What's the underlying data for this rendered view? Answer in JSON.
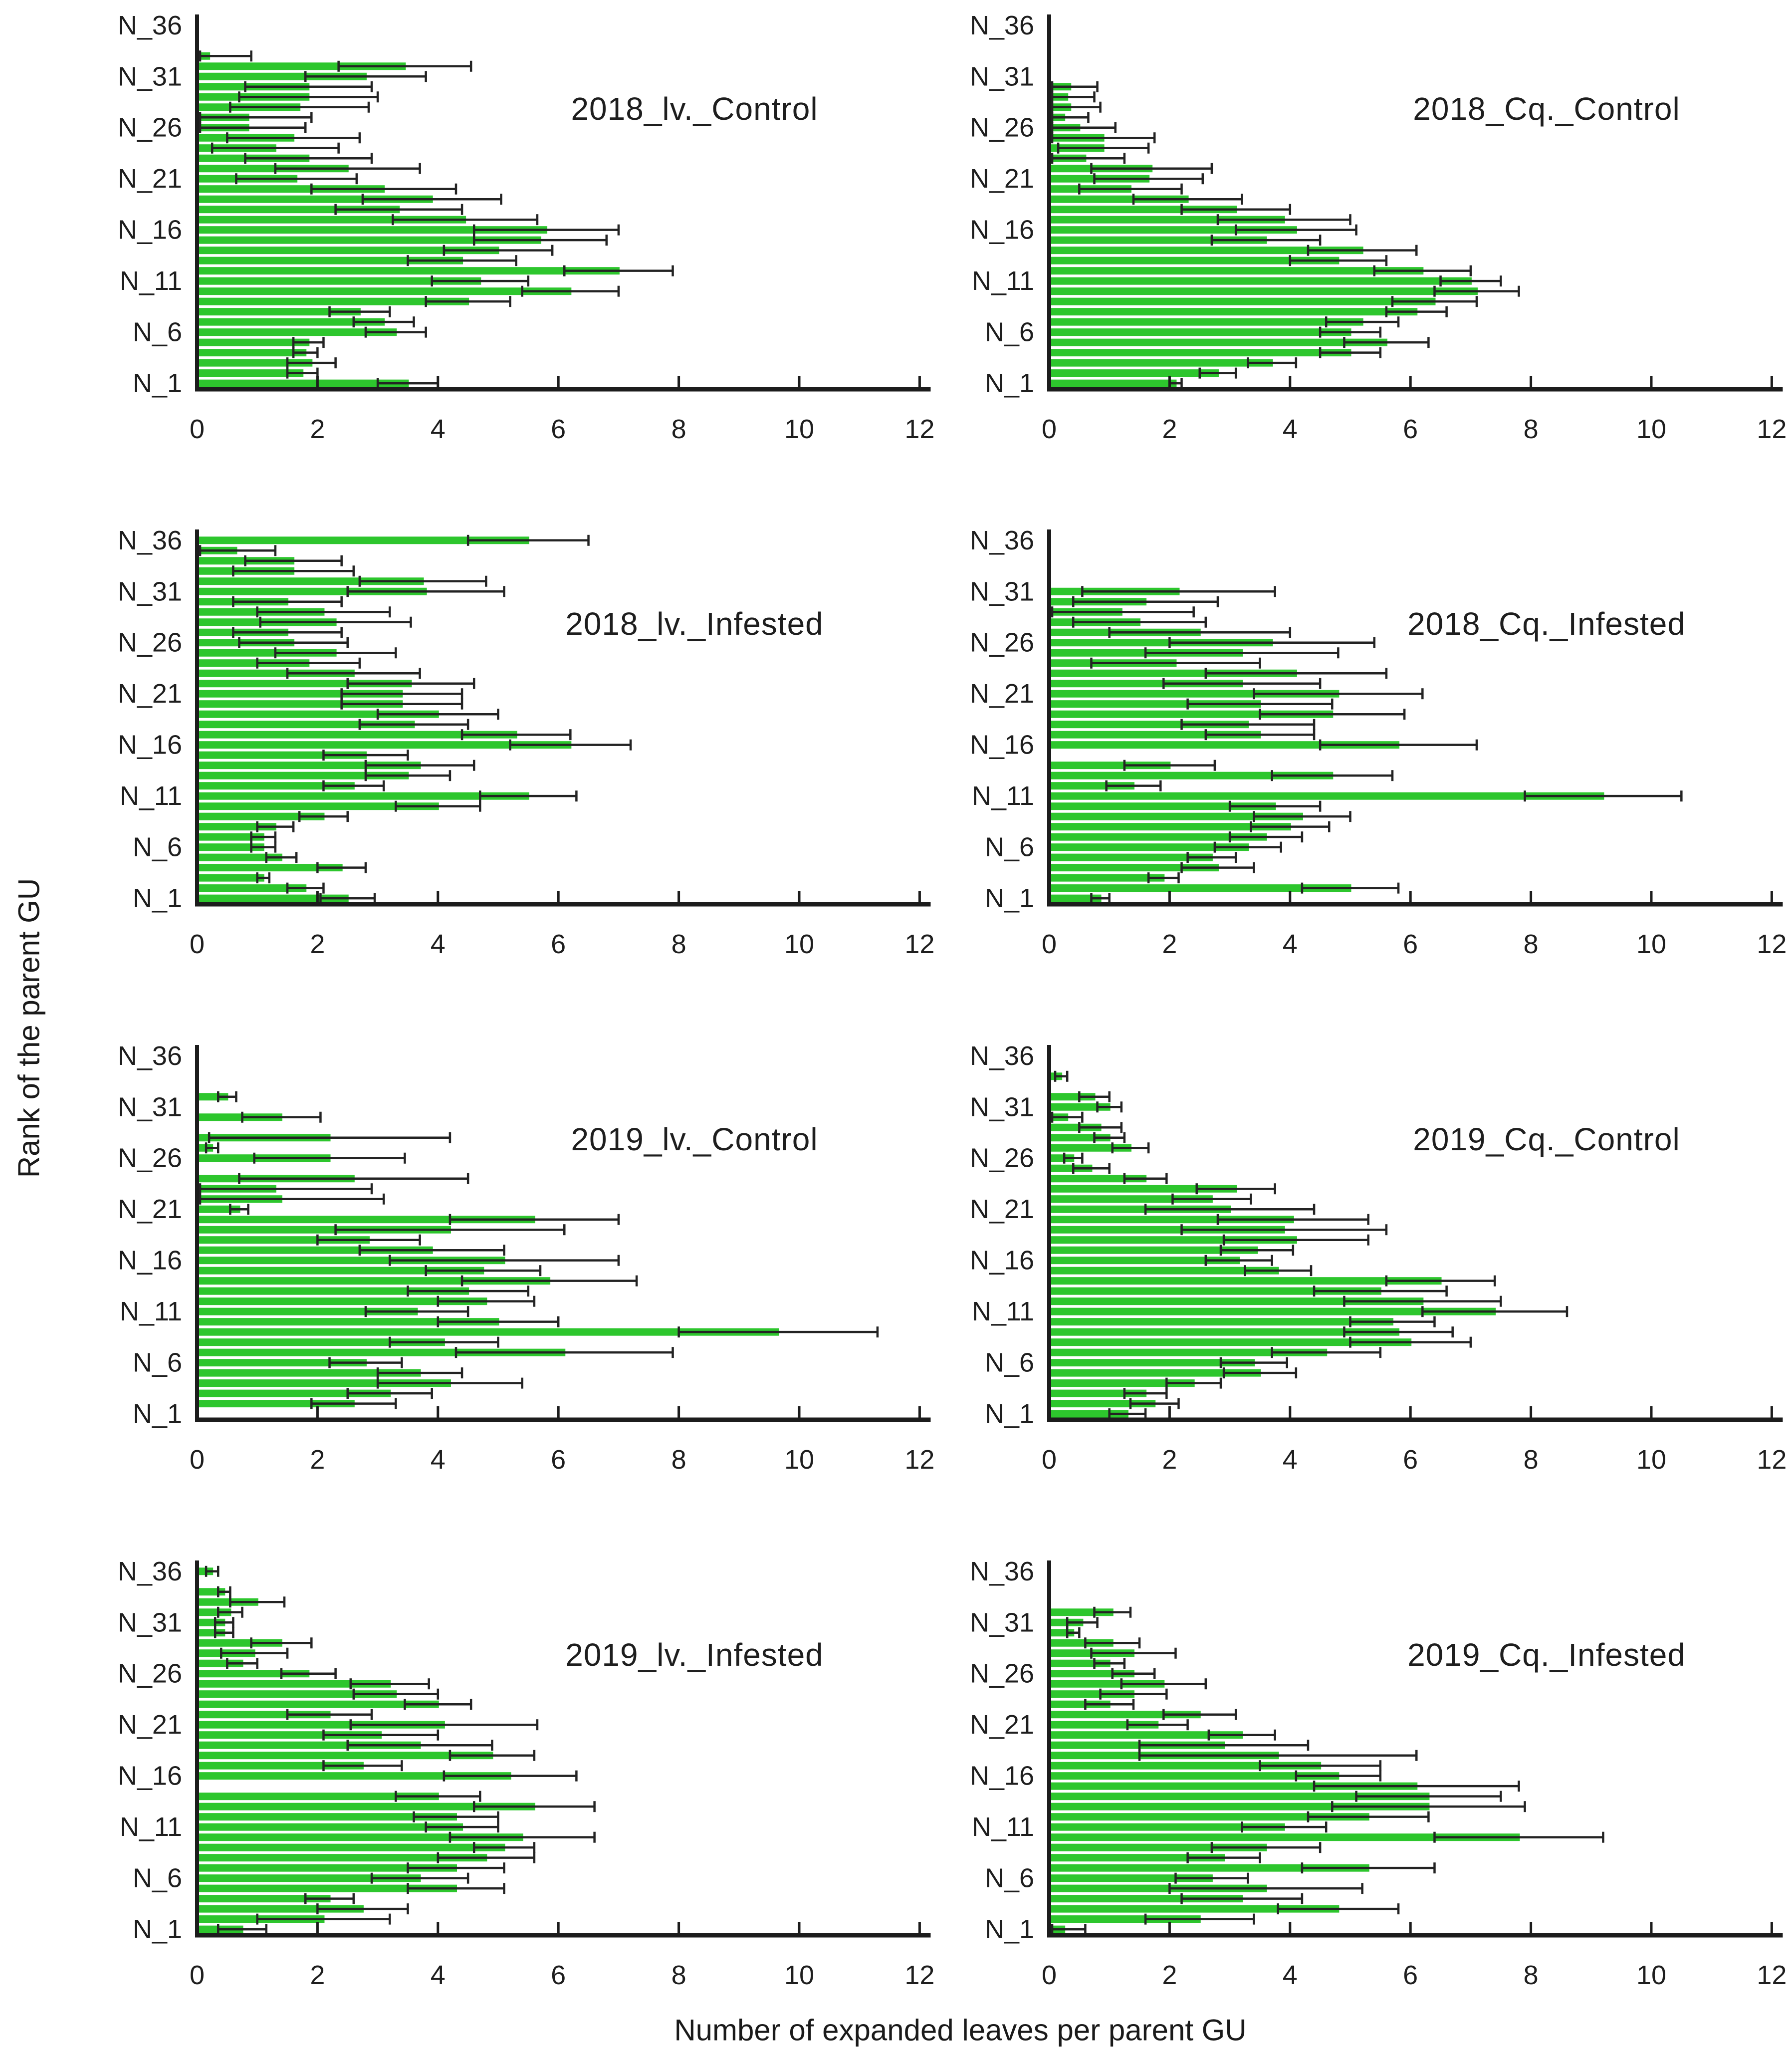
{
  "figure": {
    "x_axis_label": "Number of expanded leaves per parent GU",
    "y_axis_label": "Rank of the parent GU",
    "x_ticks": [
      0,
      2,
      4,
      6,
      8,
      10,
      12
    ],
    "x_max": 12,
    "y_tick_ranks": [
      1,
      6,
      11,
      16,
      21,
      26,
      31,
      36
    ],
    "y_tick_labels": [
      "N_1",
      "N_6",
      "N_11",
      "N_16",
      "N_21",
      "N_26",
      "N_31",
      "N_36"
    ],
    "rank_prefix": "N_",
    "bar_color": "#2dc62d",
    "error_color": "#232323",
    "axis_color": "#1c1c1c"
  },
  "chart_data": [
    {
      "type": "bar",
      "orientation": "horizontal",
      "title": "2018_lv._Control",
      "xlabel": "Number of expanded leaves per parent GU",
      "ylabel": "Rank of the parent GU",
      "xlim": [
        0,
        12
      ],
      "top_rank": 33,
      "values_from_top_rank_down_to_N1": [
        0.2,
        3.45,
        2.8,
        1.85,
        1.85,
        1.7,
        0.85,
        0.85,
        1.6,
        1.3,
        1.85,
        2.5,
        1.65,
        3.1,
        3.9,
        3.35,
        4.45,
        5.8,
        5.7,
        5.0,
        4.4,
        7.0,
        4.7,
        6.2,
        4.5,
        2.7,
        3.1,
        3.3,
        1.85,
        1.8,
        1.9,
        1.75,
        3.5
      ],
      "errors_half_width": [
        0.7,
        1.1,
        1.0,
        1.05,
        1.15,
        1.15,
        1.05,
        0.95,
        1.1,
        1.05,
        1.05,
        1.2,
        1.0,
        1.2,
        1.15,
        1.05,
        1.2,
        1.2,
        1.1,
        0.9,
        0.9,
        0.9,
        0.8,
        0.8,
        0.7,
        0.5,
        0.5,
        0.5,
        0.25,
        0.2,
        0.4,
        0.25,
        0.5
      ]
    },
    {
      "type": "bar",
      "orientation": "horizontal",
      "title": "2018_Cq._Control",
      "xlabel": "Number of expanded leaves per parent GU",
      "ylabel": "Rank of the parent GU",
      "xlim": [
        0,
        12
      ],
      "top_rank": 30,
      "values_from_top_rank_down_to_N1": [
        0.35,
        0.3,
        0.35,
        0.25,
        0.5,
        0.9,
        0.9,
        0.6,
        1.7,
        1.65,
        1.35,
        2.3,
        3.1,
        3.9,
        4.1,
        3.6,
        5.2,
        4.8,
        6.2,
        7.0,
        7.1,
        6.4,
        6.1,
        5.2,
        5.0,
        5.6,
        5.0,
        3.7,
        2.8,
        2.1
      ],
      "errors_half_width": [
        0.45,
        0.45,
        0.5,
        0.4,
        0.6,
        0.85,
        0.75,
        0.65,
        1.0,
        0.9,
        0.85,
        0.9,
        0.9,
        1.1,
        1.0,
        0.9,
        0.9,
        0.8,
        0.8,
        0.5,
        0.7,
        0.7,
        0.5,
        0.6,
        0.5,
        0.7,
        0.5,
        0.4,
        0.3,
        0.1
      ]
    },
    {
      "type": "bar",
      "orientation": "horizontal",
      "title": "2018_lv._Infested",
      "xlabel": "Number of expanded leaves per parent GU",
      "ylabel": "Rank of the parent GU",
      "xlim": [
        0,
        12
      ],
      "top_rank": 36,
      "values_from_top_rank_down_to_N1": [
        5.5,
        0.65,
        1.6,
        1.6,
        3.75,
        3.8,
        1.5,
        2.1,
        2.3,
        1.5,
        1.6,
        2.3,
        1.85,
        2.6,
        3.55,
        3.4,
        3.4,
        4.0,
        3.6,
        5.3,
        6.2,
        2.8,
        3.7,
        3.5,
        2.6,
        5.5,
        4.0,
        2.1,
        1.3,
        1.1,
        1.1,
        1.4,
        2.4,
        1.1,
        1.8,
        2.5
      ],
      "errors_half_width": [
        1.0,
        0.65,
        0.8,
        1.0,
        1.05,
        1.3,
        0.9,
        1.1,
        1.25,
        0.9,
        0.9,
        1.0,
        0.85,
        1.1,
        1.05,
        1.0,
        1.0,
        1.0,
        0.9,
        0.9,
        1.0,
        0.7,
        0.9,
        0.7,
        0.5,
        0.8,
        0.7,
        0.4,
        0.3,
        0.2,
        0.2,
        0.25,
        0.4,
        0.1,
        0.3,
        0.45
      ]
    },
    {
      "type": "bar",
      "orientation": "horizontal",
      "title": "2018_Cq._Infested",
      "xlabel": "Number of expanded leaves per parent GU",
      "ylabel": "Rank of the parent GU",
      "xlim": [
        0,
        12
      ],
      "top_rank": 31,
      "values_from_top_rank_down_to_N1": [
        2.15,
        1.6,
        1.2,
        1.5,
        2.5,
        3.7,
        3.2,
        2.1,
        4.1,
        3.2,
        4.8,
        3.5,
        4.7,
        3.3,
        3.5,
        5.8,
        0,
        2.0,
        4.7,
        1.4,
        9.2,
        3.75,
        4.2,
        4.0,
        3.6,
        3.3,
        2.7,
        2.8,
        1.9,
        5.0,
        0.85
      ],
      "errors_half_width": [
        1.6,
        1.2,
        1.2,
        1.1,
        1.5,
        1.7,
        1.6,
        1.4,
        1.5,
        1.3,
        1.4,
        1.2,
        1.2,
        1.1,
        0.9,
        1.3,
        0,
        0.75,
        1.0,
        0.45,
        1.3,
        0.75,
        0.8,
        0.65,
        0.6,
        0.55,
        0.4,
        0.6,
        0.25,
        0.8,
        0.15
      ]
    },
    {
      "type": "bar",
      "orientation": "horizontal",
      "title": "2019_lv._Control",
      "xlabel": "Number of expanded leaves per parent GU",
      "ylabel": "Rank of the parent GU",
      "xlim": [
        0,
        12
      ],
      "top_rank": 32,
      "values_from_top_rank_down_to_N1": [
        0.5,
        0,
        1.4,
        0,
        2.2,
        0.25,
        2.2,
        0,
        2.6,
        1.3,
        1.4,
        0.7,
        5.6,
        4.2,
        2.85,
        3.9,
        5.1,
        4.75,
        5.85,
        4.5,
        4.8,
        3.65,
        5.0,
        9.65,
        4.1,
        6.1,
        2.8,
        3.7,
        4.2,
        3.2,
        2.6,
        0
      ],
      "errors_half_width": [
        0.15,
        0,
        0.65,
        0,
        2.0,
        0.1,
        1.25,
        0,
        1.9,
        1.6,
        1.7,
        0.15,
        1.4,
        1.9,
        0.85,
        1.2,
        1.9,
        0.95,
        1.45,
        1.0,
        0.8,
        0.85,
        1.0,
        1.65,
        0.9,
        1.8,
        0.6,
        0.7,
        1.2,
        0.7,
        0.7,
        0
      ]
    },
    {
      "type": "bar",
      "orientation": "horizontal",
      "title": "2019_Cq._Control",
      "xlabel": "Number of expanded leaves per parent GU",
      "ylabel": "Rank of the parent GU",
      "xlim": [
        0,
        12
      ],
      "top_rank": 34,
      "values_from_top_rank_down_to_N1": [
        0.2,
        0,
        0.75,
        1.0,
        0.3,
        0.85,
        1.0,
        1.35,
        0.4,
        0.7,
        1.6,
        3.1,
        2.7,
        3.0,
        4.05,
        3.9,
        4.1,
        3.45,
        3.15,
        3.8,
        6.5,
        5.5,
        6.2,
        7.4,
        5.7,
        5.8,
        6.0,
        4.6,
        3.4,
        3.5,
        2.4,
        1.6,
        1.75,
        1.3
      ],
      "errors_half_width": [
        0.1,
        0,
        0.25,
        0.2,
        0.25,
        0.35,
        0.25,
        0.3,
        0.15,
        0.3,
        0.35,
        0.65,
        0.65,
        1.4,
        1.25,
        1.7,
        1.2,
        0.6,
        0.55,
        0.55,
        0.9,
        1.1,
        1.3,
        1.2,
        0.7,
        0.9,
        1.0,
        0.9,
        0.55,
        0.6,
        0.45,
        0.35,
        0.4,
        0.3
      ]
    },
    {
      "type": "bar",
      "orientation": "horizontal",
      "title": "2019_lv._Infested",
      "xlabel": "Number of expanded leaves per parent GU",
      "ylabel": "Rank of the parent GU",
      "xlim": [
        0,
        12
      ],
      "top_rank": 36,
      "values_from_top_rank_down_to_N1": [
        0.25,
        0,
        0.45,
        1.0,
        0.55,
        0.45,
        0.45,
        1.4,
        0.95,
        0.75,
        1.85,
        3.2,
        3.3,
        4.0,
        2.2,
        4.1,
        3.05,
        3.7,
        4.9,
        2.75,
        5.2,
        0,
        4.0,
        5.6,
        4.3,
        4.4,
        5.4,
        5.1,
        4.8,
        4.3,
        3.7,
        4.3,
        2.2,
        2.75,
        2.1,
        0.75
      ],
      "errors_half_width": [
        0.1,
        0,
        0.1,
        0.45,
        0.2,
        0.15,
        0.15,
        0.5,
        0.55,
        0.25,
        0.45,
        0.65,
        0.7,
        0.55,
        0.7,
        1.55,
        0.95,
        1.2,
        0.7,
        0.65,
        1.1,
        0,
        0.7,
        1.0,
        0.7,
        0.6,
        1.2,
        0.5,
        0.8,
        0.8,
        0.8,
        0.8,
        0.4,
        0.75,
        1.1,
        0.4
      ]
    },
    {
      "type": "bar",
      "orientation": "horizontal",
      "title": "2019_Cq._Infested",
      "xlabel": "Number of expanded leaves per parent GU",
      "ylabel": "Rank of the parent GU",
      "xlim": [
        0,
        12
      ],
      "top_rank": 32,
      "values_from_top_rank_down_to_N1": [
        1.05,
        0.55,
        0.4,
        1.05,
        1.4,
        1.0,
        1.4,
        1.9,
        1.4,
        1.0,
        2.5,
        1.8,
        3.2,
        2.9,
        3.8,
        4.5,
        4.8,
        6.1,
        6.3,
        6.3,
        5.3,
        3.9,
        7.8,
        3.6,
        2.9,
        5.3,
        2.7,
        3.6,
        3.2,
        4.8,
        2.5,
        0.25
      ],
      "errors_half_width": [
        0.3,
        0.25,
        0.1,
        0.45,
        0.7,
        0.25,
        0.35,
        0.7,
        0.55,
        0.4,
        0.6,
        0.5,
        0.55,
        1.4,
        2.3,
        1.0,
        0.7,
        1.7,
        1.2,
        1.6,
        1.0,
        0.7,
        1.4,
        0.9,
        0.6,
        1.1,
        0.6,
        1.6,
        1.0,
        1.0,
        0.9,
        0.35
      ]
    }
  ]
}
